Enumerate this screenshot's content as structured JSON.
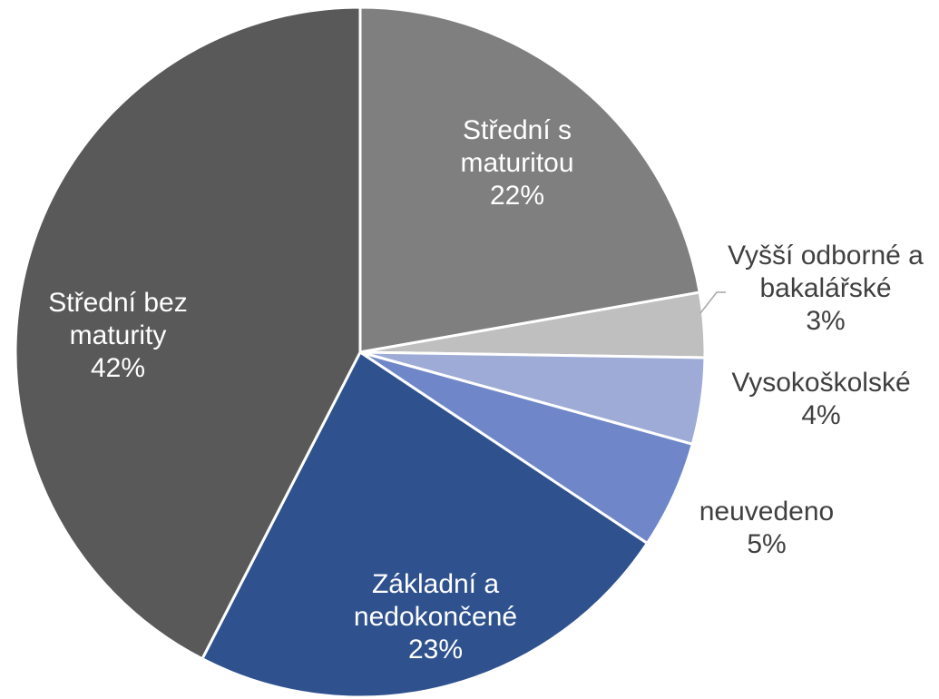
{
  "chart_data": {
    "type": "pie",
    "categories": [
      "Střední s maturitou",
      "Vyšší odborné a bakalářské",
      "Vysokoškolské",
      "neuvedeno",
      "Základní a nedokončené",
      "Střední bez maturity"
    ],
    "values": [
      22,
      3,
      4,
      5,
      23,
      42
    ],
    "value_labels": [
      "22%",
      "3%",
      "4%",
      "5%",
      "23%",
      "42%"
    ],
    "colors": [
      "#7f7f7f",
      "#bfbfbf",
      "#9dabd6",
      "#6f87c8",
      "#2f528f",
      "#595959"
    ]
  }
}
